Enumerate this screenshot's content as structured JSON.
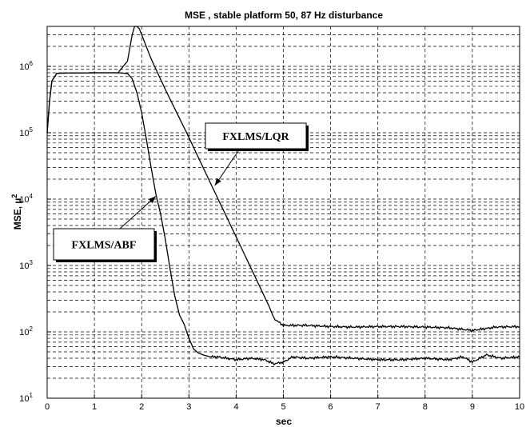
{
  "chart_data": {
    "type": "line",
    "title": "MSE , stable platform 50, 87 Hz disturbance",
    "xlabel": "sec",
    "ylabel": "MSE, µ",
    "ylabel_superscript": "2",
    "xlim": [
      0,
      10
    ],
    "ylim": [
      10,
      4000000
    ],
    "y_scale": "log",
    "grid": true,
    "x_ticks": [
      "0",
      "1",
      "2",
      "3",
      "4",
      "5",
      "6",
      "7",
      "8",
      "9",
      "10"
    ],
    "y_ticks": [
      {
        "base": "10",
        "exp": "1"
      },
      {
        "base": "10",
        "exp": "2"
      },
      {
        "base": "10",
        "exp": "3"
      },
      {
        "base": "10",
        "exp": "4"
      },
      {
        "base": "10",
        "exp": "5"
      },
      {
        "base": "10",
        "exp": "6"
      }
    ],
    "series": [
      {
        "name": "FXLMS/LQR",
        "x": [
          0,
          0.05,
          0.1,
          0.2,
          0.3,
          1.0,
          1.5,
          1.7,
          1.8,
          1.85,
          1.9,
          1.95,
          2.0,
          2.2,
          2.5,
          3.0,
          3.5,
          4.0,
          4.5,
          4.7,
          4.8,
          4.9,
          5.0,
          5.5,
          6.0,
          6.5,
          7.0,
          7.5,
          8.0,
          8.5,
          9.0,
          9.2,
          9.5,
          10.0
        ],
        "values": [
          100000,
          300000,
          600000,
          780000,
          790000,
          800000,
          800000,
          1200000,
          3000000,
          4000000,
          4000000,
          3700000,
          3000000,
          1300000,
          450000,
          85000,
          15000,
          2700,
          480,
          240,
          160,
          140,
          125,
          125,
          120,
          118,
          120,
          120,
          118,
          115,
          105,
          110,
          118,
          120
        ]
      },
      {
        "name": "FXLMS/ABF",
        "x": [
          0,
          0.05,
          0.1,
          0.2,
          0.3,
          1.0,
          1.5,
          1.7,
          1.8,
          1.9,
          2.0,
          2.1,
          2.2,
          2.3,
          2.4,
          2.5,
          2.6,
          2.7,
          2.8,
          2.9,
          3.0,
          3.1,
          3.2,
          3.3,
          3.4,
          3.5,
          3.6,
          3.8,
          4.0,
          4.3,
          4.6,
          4.8,
          5.0,
          5.2,
          5.5,
          6.0,
          6.5,
          7.0,
          7.5,
          8.0,
          8.5,
          8.8,
          9.0,
          9.3,
          9.6,
          10.0
        ],
        "values": [
          100000,
          300000,
          600000,
          780000,
          790000,
          800000,
          800000,
          780000,
          650000,
          400000,
          200000,
          80000,
          30000,
          12000,
          6000,
          2500,
          900,
          350,
          180,
          130,
          80,
          55,
          48,
          45,
          43,
          42,
          42,
          40,
          38,
          40,
          38,
          33,
          35,
          42,
          40,
          42,
          40,
          38,
          38,
          40,
          38,
          42,
          35,
          45,
          40,
          42
        ]
      }
    ],
    "annotations": [
      {
        "text": "FXLMS/LQR",
        "points_to": {
          "x": 3.55,
          "y": 16000
        }
      },
      {
        "text": "FXLMS/ABF",
        "points_to": {
          "x": 2.3,
          "y": 11000
        }
      }
    ]
  }
}
